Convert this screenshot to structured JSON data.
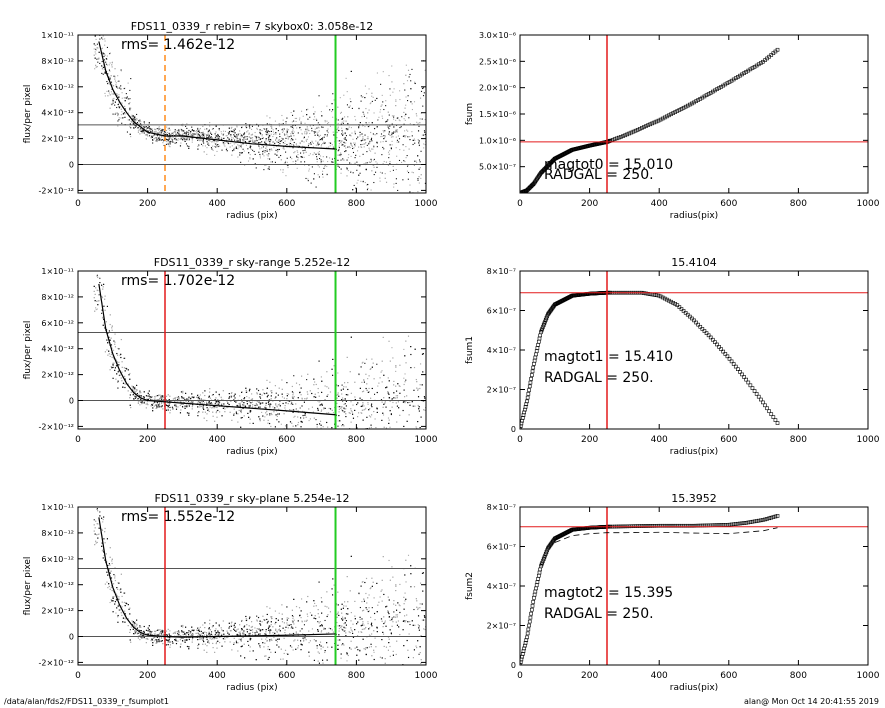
{
  "footer": {
    "path": "/data/alan/fds2/FDS11_0339_r_fsumplot1",
    "stamp": "alan@  Mon Oct 14 20:41:55 2019"
  },
  "colors": {
    "scatter_light": "#aaaaaa",
    "scatter_dark": "#111111",
    "profile": "#000000",
    "red": "#e31a1c",
    "green": "#22cc22",
    "orange": "#ff8c1a",
    "grey_line": "#555555"
  },
  "chart_data": [
    {
      "id": "A",
      "type": "scatter",
      "title": "FDS11_0339_r rebin= 7    skybox0:  3.058e-12",
      "xlabel": "radius (pix)",
      "ylabel": "flux/per pixel",
      "xlim": [
        0,
        1000
      ],
      "ylim": [
        -2.2e-12,
        1e-11
      ],
      "xticks": [
        0,
        200,
        400,
        600,
        800,
        1000
      ],
      "xtick_labels": [
        "0",
        "200",
        "400",
        "600",
        "800",
        "1000"
      ],
      "yticks": [
        -2e-12,
        0,
        2e-12,
        4e-12,
        6e-12,
        8e-12,
        1e-11
      ],
      "ytick_labels": [
        "-2×10⁻¹²",
        "0",
        "2×10⁻¹²",
        "4×10⁻¹²",
        "6×10⁻¹²",
        "8×10⁻¹²",
        "1×10⁻¹¹"
      ],
      "annotations": [
        "rms= 1.462e-12"
      ],
      "hlines": [
        {
          "y": 3.058e-12,
          "color": "grey"
        },
        {
          "y": 0,
          "color": "grey"
        }
      ],
      "vlines": [
        {
          "x": 250,
          "color": "orange",
          "style": "dashed"
        },
        {
          "x": 740,
          "color": "green"
        }
      ],
      "profile": {
        "x": [
          60,
          80,
          100,
          120,
          140,
          160,
          180,
          200,
          250,
          300,
          400,
          500,
          600,
          740
        ],
        "y": [
          9.5e-12,
          7.2e-12,
          5.8e-12,
          4.8e-12,
          4e-12,
          3.3e-12,
          2.9e-12,
          2.5e-12,
          2.2e-12,
          2.2e-12,
          1.9e-12,
          1.6e-12,
          1.4e-12,
          1.2e-12
        ]
      }
    },
    {
      "id": "B",
      "type": "scatter",
      "xlabel": "radius(pix)",
      "ylabel": "fsum",
      "xlim": [
        0,
        1000
      ],
      "ylim": [
        0,
        3e-06
      ],
      "xticks": [
        0,
        200,
        400,
        600,
        800,
        1000
      ],
      "xtick_labels": [
        "0",
        "200",
        "400",
        "600",
        "800",
        "1000"
      ],
      "yticks": [
        5e-07,
        1e-06,
        1.5e-06,
        2e-06,
        2.5e-06,
        3e-06
      ],
      "ytick_labels": [
        "5.0×10⁻⁷",
        "1.0×10⁻⁶",
        "1.5×10⁻⁶",
        "2.0×10⁻⁶",
        "2.5×10⁻⁶",
        "3.0×10⁻⁶"
      ],
      "annotations": [
        "magtot0 =  15.010",
        "RADGAL =    250."
      ],
      "hlines": [
        {
          "y": 9.7e-07,
          "color": "red"
        }
      ],
      "vlines": [
        {
          "x": 250,
          "color": "red"
        }
      ],
      "profile": {
        "x": [
          0,
          20,
          40,
          60,
          100,
          150,
          200,
          250,
          300,
          400,
          500,
          600,
          700,
          740
        ],
        "y": [
          0,
          5e-08,
          1.8e-07,
          3.8e-07,
          6.5e-07,
          8.2e-07,
          9e-07,
          9.7e-07,
          1.09e-06,
          1.38e-06,
          1.72e-06,
          2.1e-06,
          2.5e-06,
          2.72e-06
        ]
      }
    },
    {
      "id": "C",
      "type": "scatter",
      "title": "FDS11_0339_r sky-range  5.252e-12",
      "xlabel": "radius (pix)",
      "ylabel": "flux/per pixel",
      "xlim": [
        0,
        1000
      ],
      "ylim": [
        -2.2e-12,
        1e-11
      ],
      "xticks": [
        0,
        200,
        400,
        600,
        800,
        1000
      ],
      "xtick_labels": [
        "0",
        "200",
        "400",
        "600",
        "800",
        "1000"
      ],
      "yticks": [
        -2e-12,
        0,
        2e-12,
        4e-12,
        6e-12,
        8e-12,
        1e-11
      ],
      "ytick_labels": [
        "-2×10⁻¹²",
        "0",
        "2×10⁻¹²",
        "4×10⁻¹²",
        "6×10⁻¹²",
        "8×10⁻¹²",
        "1×10⁻¹¹"
      ],
      "annotations": [
        "rms= 1.702e-12"
      ],
      "hlines": [
        {
          "y": 5.252e-12,
          "color": "grey"
        },
        {
          "y": 0,
          "color": "grey"
        }
      ],
      "vlines": [
        {
          "x": 250,
          "color": "red"
        },
        {
          "x": 740,
          "color": "green"
        }
      ],
      "profile": {
        "x": [
          60,
          80,
          100,
          120,
          140,
          160,
          180,
          200,
          250,
          300,
          400,
          500,
          600,
          740
        ],
        "y": [
          9e-12,
          5.5e-12,
          3.6e-12,
          2.3e-12,
          1.3e-12,
          6e-13,
          2e-13,
          0.0,
          -1e-13,
          -2e-13,
          -4e-13,
          -6e-13,
          -8e-13,
          -1.1e-12
        ]
      }
    },
    {
      "id": "D",
      "type": "scatter",
      "title": "15.4104",
      "xlabel": "radius(pix)",
      "ylabel": "fsum1",
      "xlim": [
        0,
        1000
      ],
      "ylim": [
        0,
        8e-07
      ],
      "xticks": [
        0,
        200,
        400,
        600,
        800,
        1000
      ],
      "xtick_labels": [
        "0",
        "200",
        "400",
        "600",
        "800",
        "1000"
      ],
      "yticks": [
        0,
        2e-07,
        4e-07,
        6e-07,
        8e-07
      ],
      "ytick_labels": [
        "0",
        "2×10⁻⁷",
        "4×10⁻⁷",
        "6×10⁻⁷",
        "8×10⁻⁷"
      ],
      "annotations": [
        "magtot1 =  15.410",
        "RADGAL =    250."
      ],
      "hlines": [
        {
          "y": 6.9e-07,
          "color": "red"
        }
      ],
      "vlines": [
        {
          "x": 250,
          "color": "red"
        }
      ],
      "profile": {
        "x": [
          0,
          20,
          40,
          60,
          80,
          100,
          150,
          200,
          250,
          300,
          350,
          400,
          450,
          500,
          550,
          600,
          650,
          700,
          740
        ],
        "y": [
          0,
          1.4e-07,
          3.3e-07,
          4.9e-07,
          5.8e-07,
          6.3e-07,
          6.75e-07,
          6.85e-07,
          6.9e-07,
          6.9e-07,
          6.9e-07,
          6.75e-07,
          6.3e-07,
          5.5e-07,
          4.6e-07,
          3.6e-07,
          2.5e-07,
          1.3e-07,
          3e-08
        ]
      }
    },
    {
      "id": "E",
      "type": "scatter",
      "title": "FDS11_0339_r sky-plane  5.254e-12",
      "xlabel": "radius (pix)",
      "ylabel": "flux/per pixel",
      "xlim": [
        0,
        1000
      ],
      "ylim": [
        -2.2e-12,
        1e-11
      ],
      "xticks": [
        0,
        200,
        400,
        600,
        800,
        1000
      ],
      "xtick_labels": [
        "0",
        "200",
        "400",
        "600",
        "800",
        "1000"
      ],
      "yticks": [
        -2e-12,
        0,
        2e-12,
        4e-12,
        6e-12,
        8e-12,
        1e-11
      ],
      "ytick_labels": [
        "-2×10⁻¹²",
        "0",
        "2×10⁻¹²",
        "4×10⁻¹²",
        "6×10⁻¹²",
        "8×10⁻¹²",
        "1×10⁻¹¹"
      ],
      "annotations": [
        "rms= 1.552e-12"
      ],
      "hlines": [
        {
          "y": 5.254e-12,
          "color": "grey"
        },
        {
          "y": 0,
          "color": "grey"
        }
      ],
      "vlines": [
        {
          "x": 250,
          "color": "red"
        },
        {
          "x": 740,
          "color": "green"
        }
      ],
      "profile": {
        "x": [
          60,
          80,
          100,
          120,
          140,
          160,
          180,
          200,
          250,
          300,
          400,
          500,
          600,
          740
        ],
        "y": [
          9.2e-12,
          5.8e-12,
          3.8e-12,
          2.4e-12,
          1.4e-12,
          7e-13,
          3e-13,
          1e-13,
          0.0,
          -5e-14,
          0.0,
          5e-14,
          1e-13,
          2e-13
        ]
      }
    },
    {
      "id": "F",
      "type": "scatter",
      "title": "15.3952",
      "xlabel": "radius(pix)",
      "ylabel": "fsum2",
      "xlim": [
        0,
        1000
      ],
      "ylim": [
        0,
        8e-07
      ],
      "xticks": [
        0,
        200,
        400,
        600,
        800,
        1000
      ],
      "xtick_labels": [
        "0",
        "200",
        "400",
        "600",
        "800",
        "1000"
      ],
      "yticks": [
        0,
        2e-07,
        4e-07,
        6e-07,
        8e-07
      ],
      "ytick_labels": [
        "0",
        "2×10⁻⁷",
        "4×10⁻⁷",
        "6×10⁻⁷",
        "8×10⁻⁷"
      ],
      "annotations": [
        "magtot2 =  15.395",
        "RADGAL =    250."
      ],
      "hlines": [
        {
          "y": 7e-07,
          "color": "red"
        }
      ],
      "vlines": [
        {
          "x": 250,
          "color": "red"
        }
      ],
      "profile": {
        "x": [
          0,
          20,
          40,
          60,
          80,
          100,
          150,
          200,
          250,
          300,
          400,
          500,
          600,
          650,
          700,
          740
        ],
        "y": [
          0,
          1.4e-07,
          3.4e-07,
          5e-07,
          5.9e-07,
          6.4e-07,
          6.85e-07,
          6.95e-07,
          7e-07,
          7.02e-07,
          7.05e-07,
          7.05e-07,
          7.1e-07,
          7.2e-07,
          7.35e-07,
          7.55e-07
        ]
      },
      "dashed_profile": {
        "x": [
          100,
          150,
          200,
          250,
          300,
          400,
          500,
          600,
          700,
          740
        ],
        "y": [
          6.2e-07,
          6.55e-07,
          6.65e-07,
          6.7e-07,
          6.7e-07,
          6.72e-07,
          6.68e-07,
          6.65e-07,
          6.8e-07,
          6.95e-07
        ]
      }
    }
  ]
}
